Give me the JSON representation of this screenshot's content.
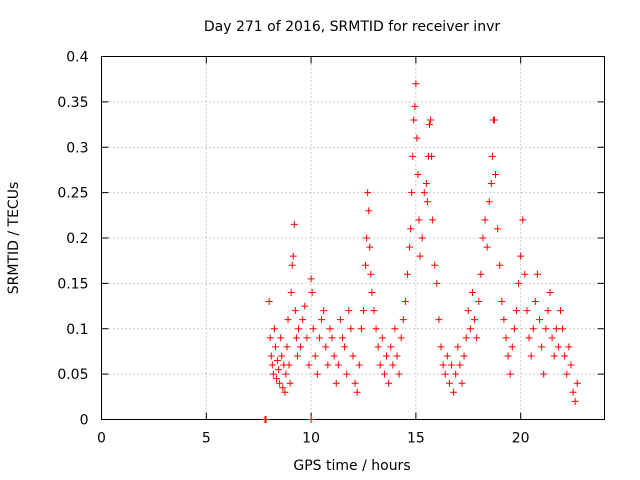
{
  "chart_data": {
    "type": "scatter",
    "title": "Day 271 of 2016, SRMTID for receiver invr",
    "xlabel": "GPS time / hours",
    "ylabel": "SRMTID / TECUs",
    "xlim": [
      0,
      24
    ],
    "ylim": [
      0,
      0.4
    ],
    "xticks": [
      0,
      5,
      10,
      15,
      20
    ],
    "yticks": [
      0,
      0.05,
      0.1,
      0.15,
      0.2,
      0.25,
      0.3,
      0.35,
      0.4
    ],
    "xtick_labels": [
      "0",
      "5",
      "10",
      "15",
      "20"
    ],
    "ytick_labels": [
      "0",
      "0.05",
      "0.1",
      "0.15",
      "0.2",
      "0.25",
      "0.3",
      "0.35",
      "0.4"
    ],
    "grid": true,
    "marker": "plus",
    "series": [
      {
        "color": "#ff0000",
        "points": [
          [
            7.8,
            0.0
          ],
          [
            7.85,
            0.0
          ],
          [
            10.0,
            0.0
          ],
          [
            8.0,
            0.13
          ],
          [
            8.05,
            0.09
          ],
          [
            8.1,
            0.07
          ],
          [
            8.15,
            0.06
          ],
          [
            8.2,
            0.05
          ],
          [
            8.25,
            0.1
          ],
          [
            8.3,
            0.08
          ],
          [
            8.35,
            0.045
          ],
          [
            8.4,
            0.065
          ],
          [
            8.45,
            0.055
          ],
          [
            8.5,
            0.04
          ],
          [
            8.55,
            0.09
          ],
          [
            8.6,
            0.07
          ],
          [
            8.65,
            0.035
          ],
          [
            8.7,
            0.06
          ],
          [
            8.75,
            0.03
          ],
          [
            8.8,
            0.05
          ],
          [
            8.85,
            0.08
          ],
          [
            8.9,
            0.11
          ],
          [
            8.95,
            0.06
          ],
          [
            9.0,
            0.04
          ],
          [
            9.05,
            0.14
          ],
          [
            9.1,
            0.17
          ],
          [
            9.15,
            0.18
          ],
          [
            9.2,
            0.215
          ],
          [
            9.25,
            0.12
          ],
          [
            9.3,
            0.09
          ],
          [
            9.35,
            0.07
          ],
          [
            9.4,
            0.1
          ],
          [
            9.5,
            0.08
          ],
          [
            9.6,
            0.11
          ],
          [
            9.7,
            0.125
          ],
          [
            9.8,
            0.09
          ],
          [
            9.9,
            0.06
          ],
          [
            10.0,
            0.155
          ],
          [
            10.05,
            0.14
          ],
          [
            10.1,
            0.1
          ],
          [
            10.2,
            0.07
          ],
          [
            10.3,
            0.05
          ],
          [
            10.4,
            0.09
          ],
          [
            10.5,
            0.11
          ],
          [
            10.6,
            0.12
          ],
          [
            10.7,
            0.08
          ],
          [
            10.8,
            0.06
          ],
          [
            10.9,
            0.1
          ],
          [
            11.0,
            0.09
          ],
          [
            11.1,
            0.07
          ],
          [
            11.2,
            0.04
          ],
          [
            11.3,
            0.06
          ],
          [
            11.4,
            0.11
          ],
          [
            11.5,
            0.09
          ],
          [
            11.6,
            0.08
          ],
          [
            11.7,
            0.05
          ],
          [
            11.8,
            0.12
          ],
          [
            11.9,
            0.1
          ],
          [
            12.0,
            0.07
          ],
          [
            12.1,
            0.04
          ],
          [
            12.2,
            0.03
          ],
          [
            12.3,
            0.06
          ],
          [
            12.4,
            0.1
          ],
          [
            12.5,
            0.12
          ],
          [
            12.6,
            0.17
          ],
          [
            12.65,
            0.2
          ],
          [
            12.7,
            0.25
          ],
          [
            12.75,
            0.23
          ],
          [
            12.8,
            0.19
          ],
          [
            12.85,
            0.16
          ],
          [
            12.9,
            0.14
          ],
          [
            13.0,
            0.12
          ],
          [
            13.1,
            0.1
          ],
          [
            13.2,
            0.08
          ],
          [
            13.3,
            0.06
          ],
          [
            13.4,
            0.09
          ],
          [
            13.5,
            0.05
          ],
          [
            13.6,
            0.07
          ],
          [
            13.7,
            0.04
          ],
          [
            13.8,
            0.08
          ],
          [
            13.9,
            0.06
          ],
          [
            14.0,
            0.1
          ],
          [
            14.1,
            0.07
          ],
          [
            14.2,
            0.05
          ],
          [
            14.3,
            0.09
          ],
          [
            14.4,
            0.11
          ],
          [
            14.5,
            0.13
          ],
          [
            14.6,
            0.16
          ],
          [
            14.7,
            0.19
          ],
          [
            14.75,
            0.21
          ],
          [
            14.8,
            0.25
          ],
          [
            14.85,
            0.29
          ],
          [
            14.9,
            0.33
          ],
          [
            14.95,
            0.345
          ],
          [
            15.0,
            0.37
          ],
          [
            15.05,
            0.31
          ],
          [
            15.1,
            0.27
          ],
          [
            15.15,
            0.22
          ],
          [
            15.2,
            0.18
          ],
          [
            15.3,
            0.2
          ],
          [
            15.4,
            0.25
          ],
          [
            15.5,
            0.26
          ],
          [
            15.55,
            0.24
          ],
          [
            15.6,
            0.29
          ],
          [
            15.65,
            0.325
          ],
          [
            15.7,
            0.33
          ],
          [
            15.75,
            0.29
          ],
          [
            15.8,
            0.22
          ],
          [
            15.9,
            0.17
          ],
          [
            16.0,
            0.15
          ],
          [
            16.1,
            0.11
          ],
          [
            16.2,
            0.08
          ],
          [
            16.3,
            0.06
          ],
          [
            16.4,
            0.05
          ],
          [
            16.5,
            0.07
          ],
          [
            16.6,
            0.04
          ],
          [
            16.7,
            0.06
          ],
          [
            16.8,
            0.03
          ],
          [
            16.9,
            0.05
          ],
          [
            17.0,
            0.08
          ],
          [
            17.1,
            0.06
          ],
          [
            17.2,
            0.04
          ],
          [
            17.3,
            0.07
          ],
          [
            17.4,
            0.09
          ],
          [
            17.5,
            0.12
          ],
          [
            17.6,
            0.1
          ],
          [
            17.7,
            0.14
          ],
          [
            17.8,
            0.11
          ],
          [
            17.9,
            0.09
          ],
          [
            18.0,
            0.13
          ],
          [
            18.1,
            0.16
          ],
          [
            18.2,
            0.2
          ],
          [
            18.3,
            0.22
          ],
          [
            18.4,
            0.19
          ],
          [
            18.5,
            0.24
          ],
          [
            18.6,
            0.26
          ],
          [
            18.65,
            0.29
          ],
          [
            18.7,
            0.33
          ],
          [
            18.75,
            0.33
          ],
          [
            18.8,
            0.27
          ],
          [
            18.9,
            0.21
          ],
          [
            19.0,
            0.17
          ],
          [
            19.1,
            0.13
          ],
          [
            19.2,
            0.11
          ],
          [
            19.3,
            0.09
          ],
          [
            19.4,
            0.07
          ],
          [
            19.5,
            0.05
          ],
          [
            19.6,
            0.08
          ],
          [
            19.7,
            0.1
          ],
          [
            19.8,
            0.12
          ],
          [
            19.9,
            0.15
          ],
          [
            20.0,
            0.18
          ],
          [
            20.1,
            0.22
          ],
          [
            20.2,
            0.16
          ],
          [
            20.3,
            0.12
          ],
          [
            20.4,
            0.09
          ],
          [
            20.5,
            0.07
          ],
          [
            20.6,
            0.1
          ],
          [
            20.7,
            0.13
          ],
          [
            20.8,
            0.16
          ],
          [
            20.9,
            0.11
          ],
          [
            21.0,
            0.08
          ],
          [
            21.1,
            0.05
          ],
          [
            21.2,
            0.1
          ],
          [
            21.3,
            0.12
          ],
          [
            21.4,
            0.14
          ],
          [
            21.5,
            0.09
          ],
          [
            21.6,
            0.07
          ],
          [
            21.7,
            0.1
          ],
          [
            21.8,
            0.08
          ],
          [
            21.9,
            0.12
          ],
          [
            22.0,
            0.1
          ],
          [
            22.1,
            0.07
          ],
          [
            22.2,
            0.05
          ],
          [
            22.3,
            0.08
          ],
          [
            22.4,
            0.06
          ],
          [
            22.5,
            0.03
          ],
          [
            22.6,
            0.02
          ],
          [
            22.7,
            0.04
          ]
        ]
      }
    ]
  }
}
